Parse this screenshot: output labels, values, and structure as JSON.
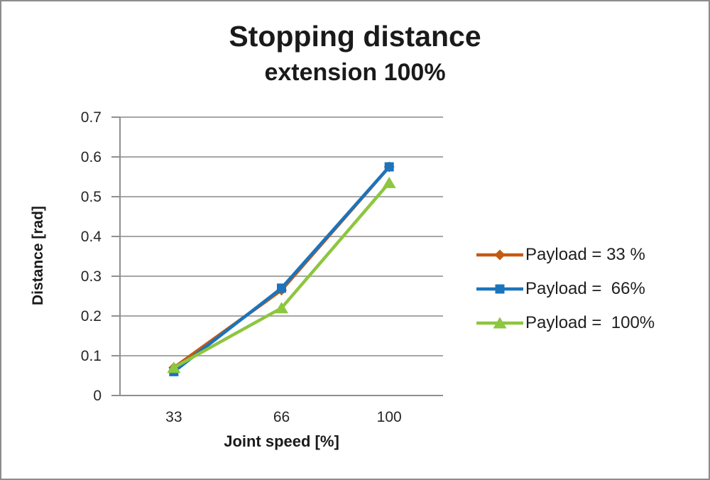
{
  "chart_data": {
    "type": "line",
    "title": "Stopping distance",
    "subtitle": "extension 100%",
    "xlabel": "Joint speed [%]",
    "ylabel": "Distance [rad]",
    "categories": [
      "33",
      "66",
      "100"
    ],
    "ylim": [
      0,
      0.7
    ],
    "yticks": [
      0,
      0.1,
      0.2,
      0.3,
      0.4,
      0.5,
      0.6,
      0.7
    ],
    "ytick_labels": [
      "0",
      "0.1",
      "0.2",
      "0.3",
      "0.4",
      "0.5",
      "0.6",
      "0.7"
    ],
    "grid": true,
    "legend_position": "right-middle",
    "series": [
      {
        "name": "Payload = 33 %",
        "marker": "diamond",
        "color": "#C55A11",
        "values": [
          0.07,
          0.265,
          0.575
        ]
      },
      {
        "name": "Payload =  66%",
        "marker": "square",
        "color": "#1B74BC",
        "values": [
          0.06,
          0.27,
          0.575
        ]
      },
      {
        "name": "Payload =  100%",
        "marker": "triangle",
        "color": "#8DC63F",
        "values": [
          0.07,
          0.22,
          0.535
        ]
      }
    ]
  },
  "style": {
    "grid_color": "#A6A6A6",
    "axis_color": "#8F8F8F",
    "tick_color": "#8F8F8F",
    "text_color": "#1F1F1F",
    "frame_border_color": "#8C8C8C",
    "background": "#FFFFFF"
  }
}
